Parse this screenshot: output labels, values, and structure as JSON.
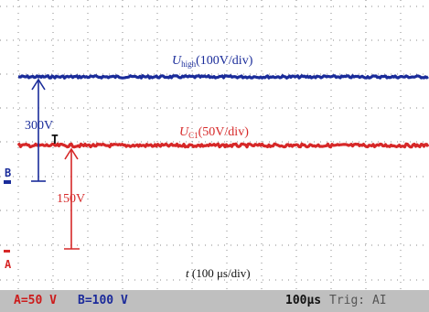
{
  "traces": {
    "high": {
      "symbol": "U",
      "subscript": "high",
      "scale": "(100V/div)",
      "color": "#1a2c9a"
    },
    "c1": {
      "symbol": "U",
      "subscript": "C1",
      "scale": "(50V/div)",
      "color": "#d62828"
    }
  },
  "time_axis": {
    "symbol": "t",
    "scale": " (100 μs/div)"
  },
  "annotations": {
    "high_delta": "300V",
    "c1_delta": "150V"
  },
  "markers": {
    "b": "B",
    "a": "A",
    "trigger": "T"
  },
  "status_bar": {
    "channel_a": "A=50 V",
    "channel_b": "B=100 V",
    "timebase": "100μs",
    "trigger": "Trig: AI"
  }
}
